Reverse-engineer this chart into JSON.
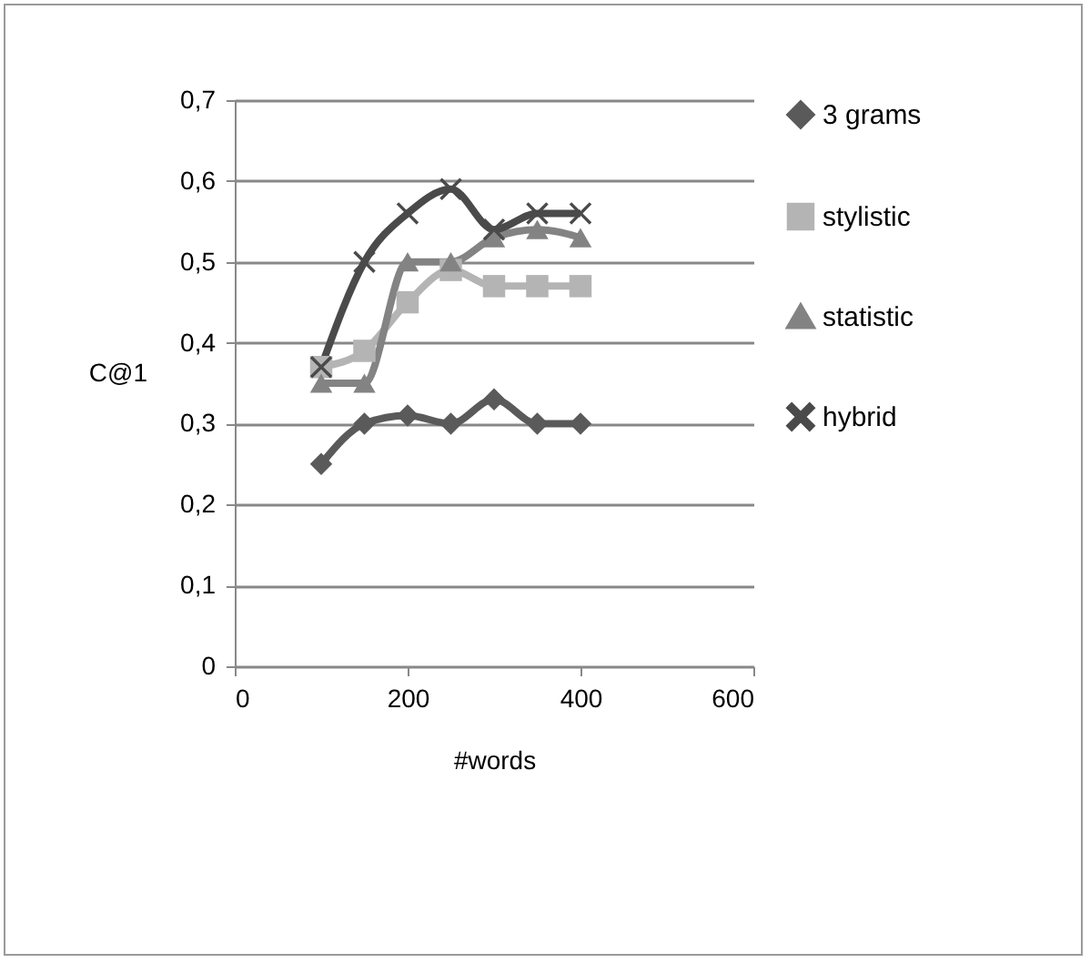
{
  "chart_data": {
    "type": "line",
    "xlabel": "#words",
    "ylabel": "C@1",
    "x": [
      100,
      150,
      200,
      250,
      300,
      350,
      400
    ],
    "series": [
      {
        "name": "3 grams",
        "color": "#5a5a5a",
        "marker": "diamond",
        "values": [
          0.25,
          0.3,
          0.31,
          0.3,
          0.33,
          0.3,
          0.3
        ]
      },
      {
        "name": "stylistic",
        "color": "#b4b4b4",
        "marker": "square",
        "values": [
          0.37,
          0.39,
          0.45,
          0.49,
          0.47,
          0.47,
          0.47
        ]
      },
      {
        "name": "statistic",
        "color": "#838383",
        "marker": "triangle",
        "values": [
          0.35,
          0.35,
          0.5,
          0.5,
          0.53,
          0.54,
          0.53
        ]
      },
      {
        "name": "hybrid",
        "color": "#4a4a4a",
        "marker": "cross",
        "values": [
          0.37,
          0.5,
          0.56,
          0.59,
          0.54,
          0.56,
          0.56
        ]
      }
    ],
    "xlim": [
      0,
      600
    ],
    "xticks": [
      0,
      200,
      400,
      600
    ],
    "ylim": [
      0,
      0.7
    ],
    "yticks": [
      {
        "value": 0,
        "label": "0"
      },
      {
        "value": 0.1,
        "label": "0,1"
      },
      {
        "value": 0.2,
        "label": "0,2"
      },
      {
        "value": 0.3,
        "label": "0,3"
      },
      {
        "value": 0.4,
        "label": "0,4"
      },
      {
        "value": 0.5,
        "label": "0,5"
      },
      {
        "value": 0.6,
        "label": "0,6"
      },
      {
        "value": 0.7,
        "label": "0,7"
      }
    ],
    "grid": "y",
    "legend": "right"
  }
}
